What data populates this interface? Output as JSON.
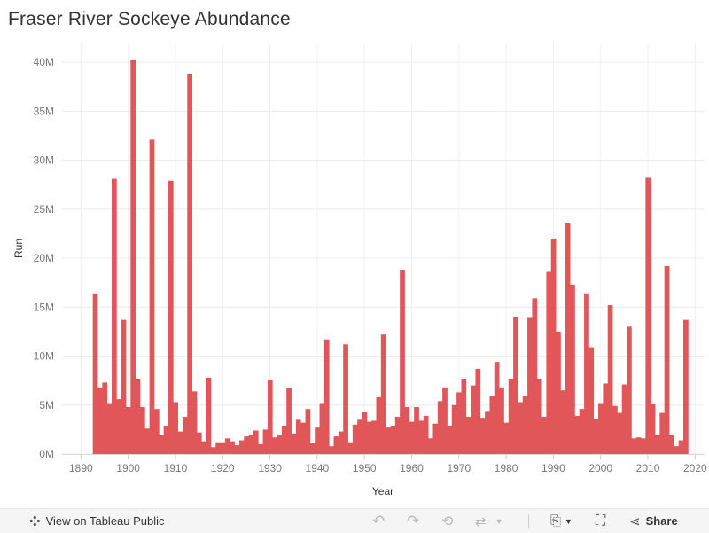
{
  "title": "Fraser River Sockeye Abundance",
  "chart_data": {
    "type": "bar",
    "xlabel": "Year",
    "ylabel": "Run",
    "xlim": [
      1886,
      2022
    ],
    "ylim": [
      0,
      42000000
    ],
    "x_ticks": [
      1890,
      1900,
      1910,
      1920,
      1930,
      1940,
      1950,
      1960,
      1970,
      1980,
      1990,
      2000,
      2010,
      2020
    ],
    "y_ticks": [
      {
        "value": 0,
        "label": "0M"
      },
      {
        "value": 5000000,
        "label": "5M"
      },
      {
        "value": 10000000,
        "label": "10M"
      },
      {
        "value": 15000000,
        "label": "15M"
      },
      {
        "value": 20000000,
        "label": "20M"
      },
      {
        "value": 25000000,
        "label": "25M"
      },
      {
        "value": 30000000,
        "label": "30M"
      },
      {
        "value": 35000000,
        "label": "35M"
      },
      {
        "value": 40000000,
        "label": "40M"
      }
    ],
    "grid": true,
    "bar_color": "#e15759",
    "years": [
      1893,
      1894,
      1895,
      1896,
      1897,
      1898,
      1899,
      1900,
      1901,
      1902,
      1903,
      1904,
      1905,
      1906,
      1907,
      1908,
      1909,
      1910,
      1911,
      1912,
      1913,
      1914,
      1915,
      1916,
      1917,
      1918,
      1919,
      1920,
      1921,
      1922,
      1923,
      1924,
      1925,
      1926,
      1927,
      1928,
      1929,
      1930,
      1931,
      1932,
      1933,
      1934,
      1935,
      1936,
      1937,
      1938,
      1939,
      1940,
      1941,
      1942,
      1943,
      1944,
      1945,
      1946,
      1947,
      1948,
      1949,
      1950,
      1951,
      1952,
      1953,
      1954,
      1955,
      1956,
      1957,
      1958,
      1959,
      1960,
      1961,
      1962,
      1963,
      1964,
      1965,
      1966,
      1967,
      1968,
      1969,
      1970,
      1971,
      1972,
      1973,
      1974,
      1975,
      1976,
      1977,
      1978,
      1979,
      1980,
      1981,
      1982,
      1983,
      1984,
      1985,
      1986,
      1987,
      1988,
      1989,
      1990,
      1991,
      1992,
      1993,
      1994,
      1995,
      1996,
      1997,
      1998,
      1999,
      2000,
      2001,
      2002,
      2003,
      2004,
      2005,
      2006,
      2007,
      2008,
      2009,
      2010,
      2011,
      2012,
      2013,
      2014,
      2015,
      2016,
      2017,
      2018
    ],
    "values": [
      16400000,
      6800000,
      7300000,
      5200000,
      28100000,
      5600000,
      13700000,
      4800000,
      40200000,
      7700000,
      4800000,
      2600000,
      32100000,
      4600000,
      1900000,
      2900000,
      27900000,
      5300000,
      2300000,
      3800000,
      38800000,
      6400000,
      2200000,
      1300000,
      7800000,
      700000,
      1200000,
      1200000,
      1600000,
      1300000,
      900000,
      1400000,
      1800000,
      2000000,
      2400000,
      1000000,
      2500000,
      7600000,
      1700000,
      2000000,
      2900000,
      6700000,
      2100000,
      3500000,
      3200000,
      4600000,
      1100000,
      2700000,
      5200000,
      11700000,
      800000,
      1800000,
      2300000,
      11200000,
      1200000,
      3000000,
      3500000,
      4300000,
      3300000,
      3400000,
      5800000,
      12200000,
      2700000,
      2900000,
      3800000,
      18800000,
      4800000,
      3300000,
      4800000,
      3400000,
      3900000,
      1600000,
      3100000,
      5400000,
      6800000,
      2900000,
      5000000,
      6300000,
      7700000,
      3800000,
      7000000,
      8700000,
      3700000,
      4400000,
      5900000,
      9400000,
      6800000,
      3200000,
      7700000,
      14000000,
      5300000,
      5900000,
      13900000,
      15900000,
      7700000,
      3800000,
      18600000,
      22000000,
      12500000,
      6500000,
      23600000,
      17300000,
      3900000,
      4600000,
      16400000,
      10900000,
      3600000,
      5200000,
      7200000,
      15200000,
      4900000,
      4200000,
      7100000,
      13000000,
      1600000,
      1700000,
      1600000,
      28200000,
      5100000,
      2000000,
      4200000,
      19200000,
      2000000,
      800000,
      1400000,
      13700000
    ]
  },
  "toolbar": {
    "view_label": "View on Tableau Public",
    "share_label": "Share"
  }
}
